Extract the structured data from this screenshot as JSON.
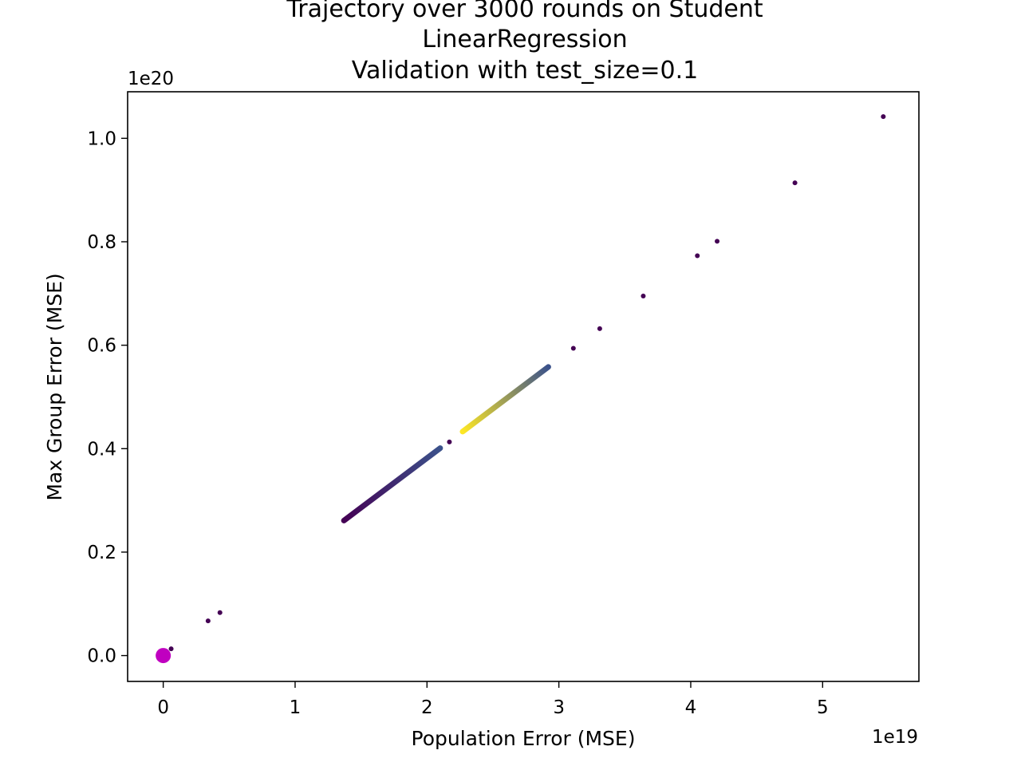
{
  "chart_data": {
    "type": "scatter",
    "title_lines": [
      "Trajectory over 3000 rounds on Student",
      "LinearRegression",
      "Validation with test_size=0.1"
    ],
    "xlabel": "Population Error (MSE)",
    "ylabel": "Max Group Error (MSE)",
    "x_offset_label": "1e19",
    "y_offset_label": "1e20",
    "xlim": [
      -0.27,
      5.73
    ],
    "ylim": [
      -0.05,
      1.09
    ],
    "x_ticks": [
      0,
      1,
      2,
      3,
      4,
      5
    ],
    "x_tick_labels": [
      "0",
      "1",
      "2",
      "3",
      "4",
      "5"
    ],
    "y_ticks": [
      0.0,
      0.2,
      0.4,
      0.6,
      0.8,
      1.0
    ],
    "y_tick_labels": [
      "0.0",
      "0.2",
      "0.4",
      "0.6",
      "0.8",
      "1.0"
    ],
    "grid": false,
    "colormap": "viridis",
    "start_point": {
      "x": 0.0,
      "y": 0.0,
      "color": "#c000c0"
    },
    "scattered_points": [
      {
        "x": 0.06,
        "y": 0.013
      },
      {
        "x": 0.34,
        "y": 0.067
      },
      {
        "x": 0.43,
        "y": 0.083
      },
      {
        "x": 2.17,
        "y": 0.413
      },
      {
        "x": 3.11,
        "y": 0.594
      },
      {
        "x": 3.31,
        "y": 0.632
      },
      {
        "x": 3.64,
        "y": 0.695
      },
      {
        "x": 4.05,
        "y": 0.773
      },
      {
        "x": 4.2,
        "y": 0.801
      },
      {
        "x": 4.79,
        "y": 0.914
      },
      {
        "x": 5.46,
        "y": 1.042
      }
    ],
    "scattered_color": "#440154",
    "trajectory_segments": [
      {
        "x_start": 1.37,
        "y_start": 0.261,
        "x_end": 2.1,
        "y_end": 0.401,
        "color_start": "#440154",
        "color_end": "#3b528b"
      },
      {
        "x_start": 2.27,
        "y_start": 0.433,
        "x_end": 2.92,
        "y_end": 0.558,
        "color_start": "#fde725",
        "color_end": "#3b528b"
      }
    ]
  }
}
